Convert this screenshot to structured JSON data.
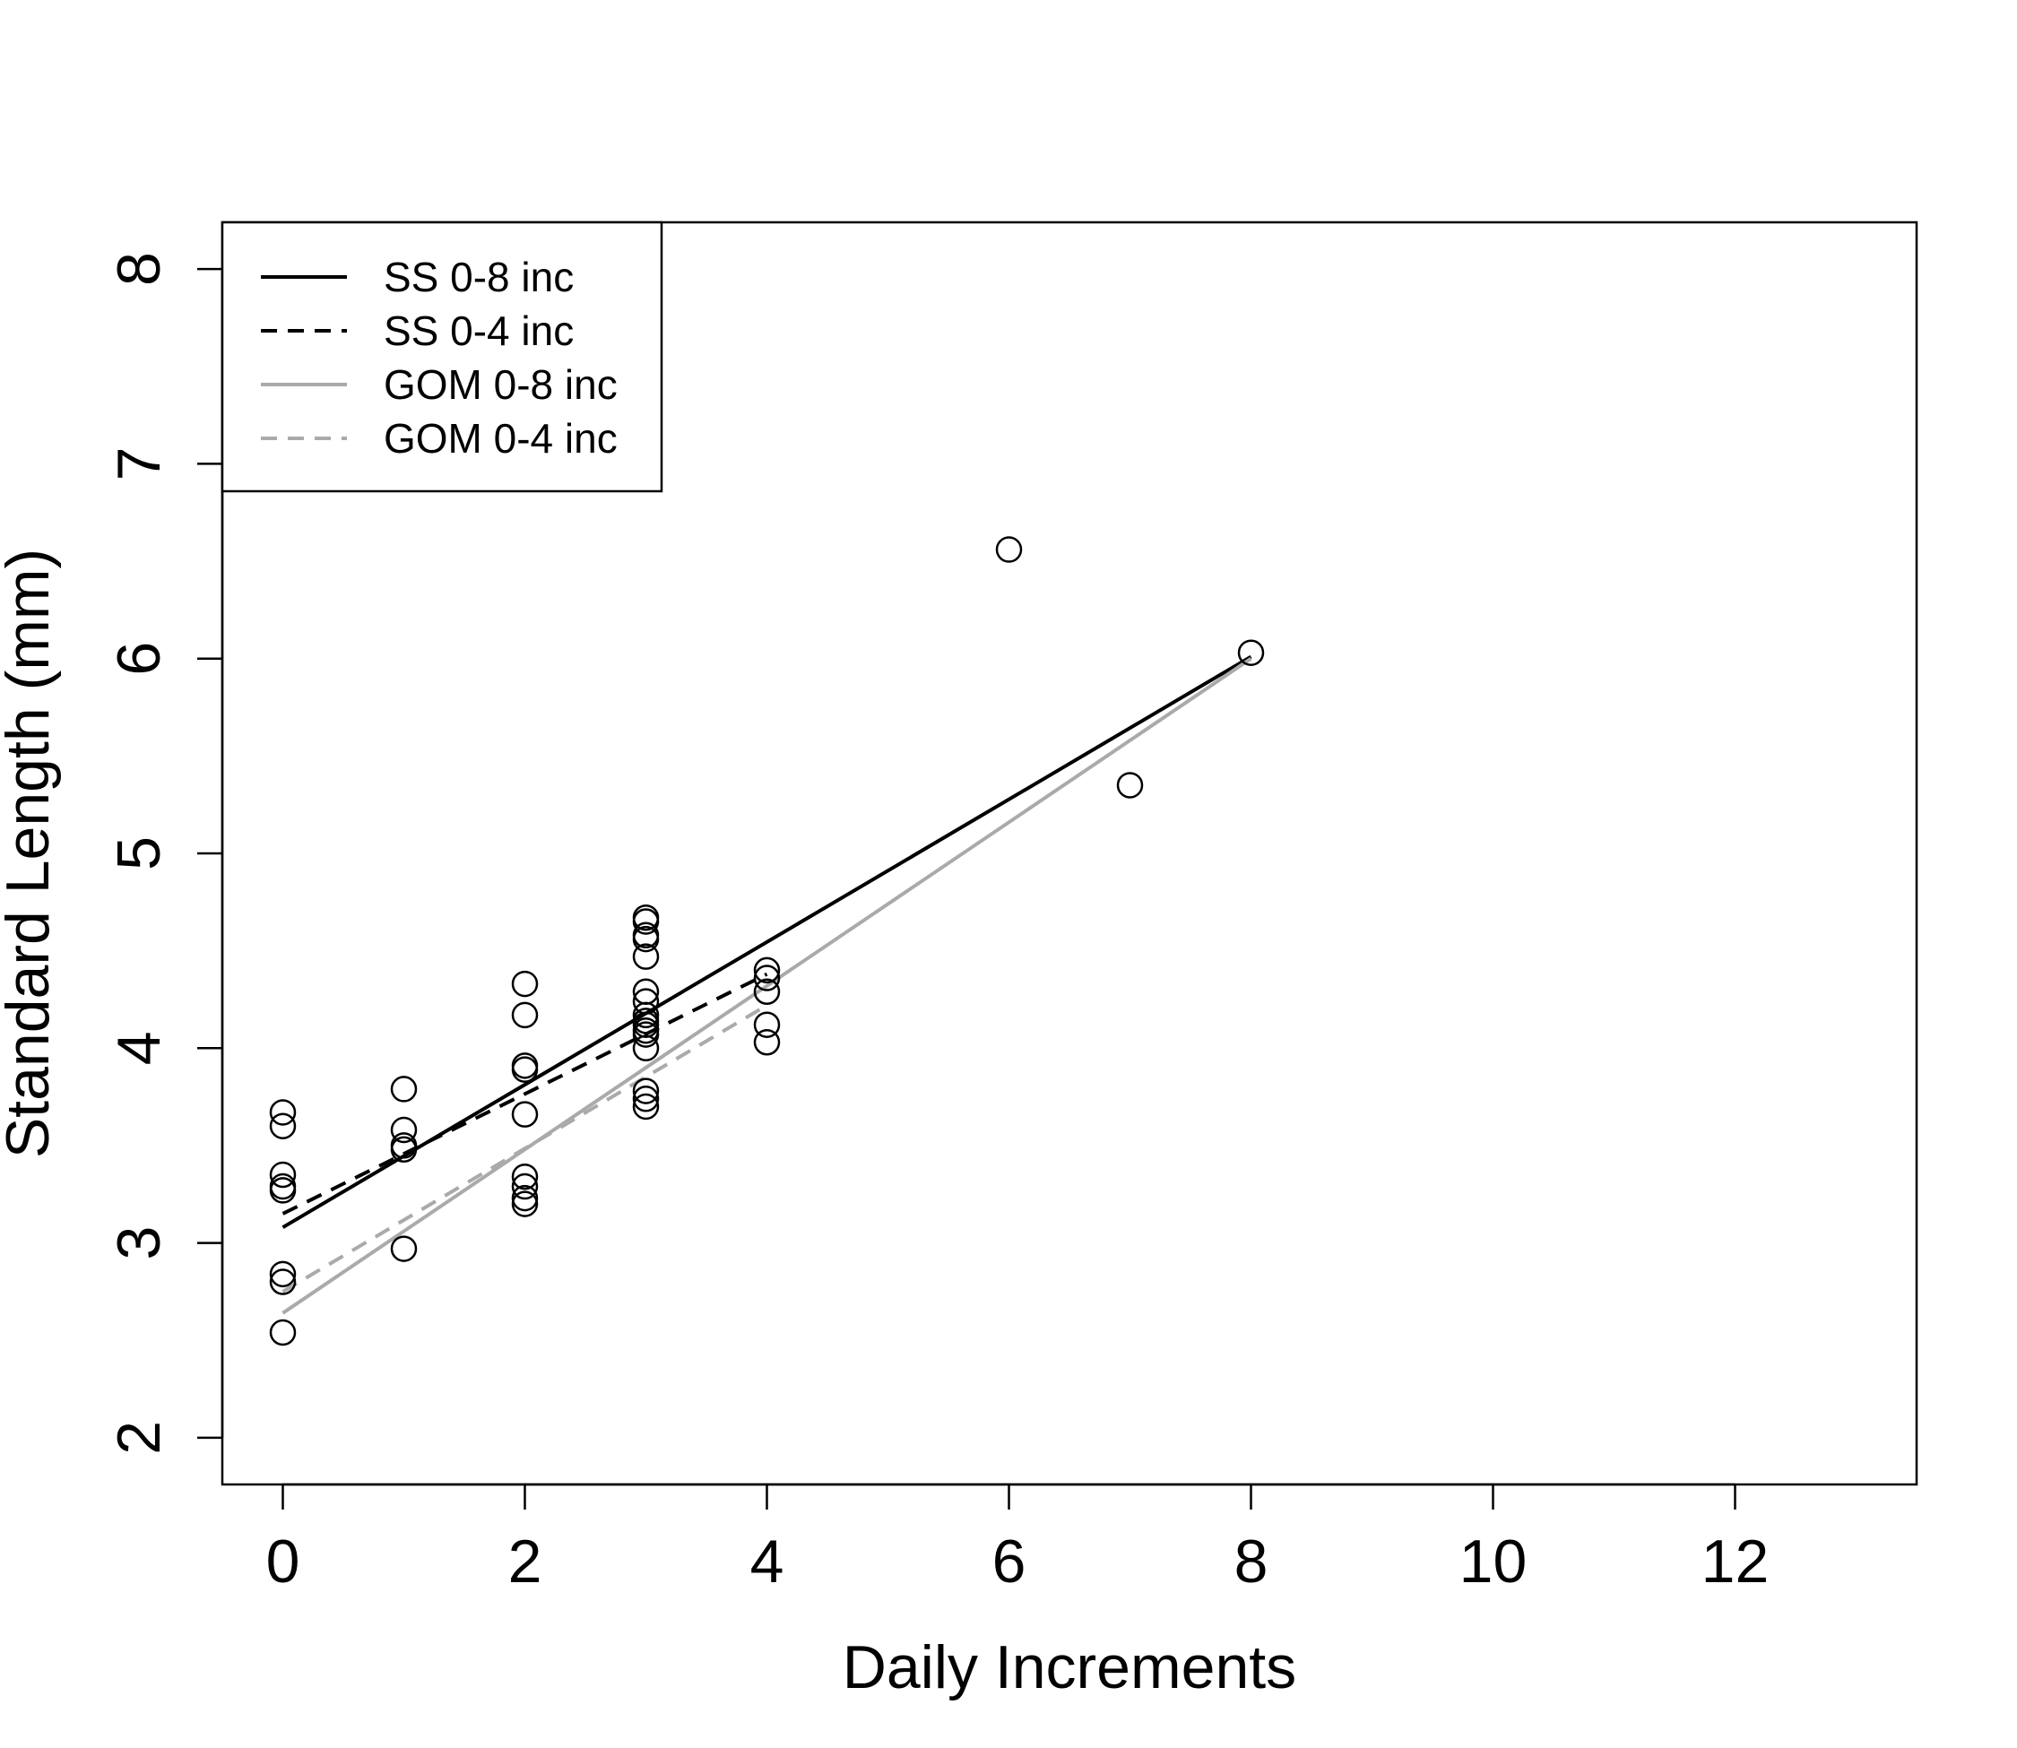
{
  "chart_data": {
    "type": "scatter",
    "title": "",
    "xlabel": "Daily Increments",
    "ylabel": "Standard Length (mm)",
    "xlim": [
      -0.5,
      13.5
    ],
    "ylim": [
      1.76,
      8.24
    ],
    "xticks": [
      0,
      2,
      4,
      6,
      8,
      10,
      12
    ],
    "yticks": [
      2,
      3,
      4,
      5,
      6,
      7,
      8
    ],
    "grid": false,
    "legend_position": "top-left",
    "points": [
      {
        "x": 0,
        "y": 3.67
      },
      {
        "x": 0,
        "y": 3.6
      },
      {
        "x": 0,
        "y": 3.35
      },
      {
        "x": 0,
        "y": 3.29
      },
      {
        "x": 0,
        "y": 3.27
      },
      {
        "x": 0,
        "y": 2.84
      },
      {
        "x": 0,
        "y": 2.8
      },
      {
        "x": 0,
        "y": 2.54
      },
      {
        "x": 1,
        "y": 3.79
      },
      {
        "x": 1,
        "y": 3.58
      },
      {
        "x": 1,
        "y": 3.5
      },
      {
        "x": 1,
        "y": 3.48
      },
      {
        "x": 1,
        "y": 2.97
      },
      {
        "x": 2,
        "y": 4.33
      },
      {
        "x": 2,
        "y": 4.17
      },
      {
        "x": 2,
        "y": 3.91
      },
      {
        "x": 2,
        "y": 3.89
      },
      {
        "x": 2,
        "y": 3.66
      },
      {
        "x": 2,
        "y": 3.34
      },
      {
        "x": 2,
        "y": 3.29
      },
      {
        "x": 2,
        "y": 3.23
      },
      {
        "x": 2,
        "y": 3.2
      },
      {
        "x": 3,
        "y": 4.67
      },
      {
        "x": 3,
        "y": 4.65
      },
      {
        "x": 3,
        "y": 4.58
      },
      {
        "x": 3,
        "y": 4.56
      },
      {
        "x": 3,
        "y": 4.47
      },
      {
        "x": 3,
        "y": 4.29
      },
      {
        "x": 3,
        "y": 4.24
      },
      {
        "x": 3,
        "y": 4.17
      },
      {
        "x": 3,
        "y": 4.14
      },
      {
        "x": 3,
        "y": 4.12
      },
      {
        "x": 3,
        "y": 4.09
      },
      {
        "x": 3,
        "y": 4.07
      },
      {
        "x": 3,
        "y": 4.0
      },
      {
        "x": 3,
        "y": 3.78
      },
      {
        "x": 3,
        "y": 3.74
      },
      {
        "x": 3,
        "y": 3.7
      },
      {
        "x": 4,
        "y": 4.4
      },
      {
        "x": 4,
        "y": 4.36
      },
      {
        "x": 4,
        "y": 4.29
      },
      {
        "x": 4,
        "y": 4.12
      },
      {
        "x": 4,
        "y": 4.03
      },
      {
        "x": 6,
        "y": 6.56
      },
      {
        "x": 7,
        "y": 5.35
      },
      {
        "x": 8,
        "y": 6.03
      }
    ],
    "series": [
      {
        "name": "SS 0-8 inc",
        "style": "solid",
        "color": "#000000",
        "x": [
          0,
          8
        ],
        "y": [
          3.08,
          6.01
        ]
      },
      {
        "name": "SS 0-4 inc",
        "style": "dashed",
        "color": "#000000",
        "x": [
          0,
          4
        ],
        "y": [
          3.15,
          4.38
        ]
      },
      {
        "name": "GOM 0-8 inc",
        "style": "solid",
        "color": "#aaaaaa",
        "x": [
          0,
          8
        ],
        "y": [
          2.64,
          6.0
        ]
      },
      {
        "name": "GOM 0-4 inc",
        "style": "dashed",
        "color": "#aaaaaa",
        "x": [
          0,
          4
        ],
        "y": [
          2.75,
          4.22
        ]
      }
    ]
  }
}
